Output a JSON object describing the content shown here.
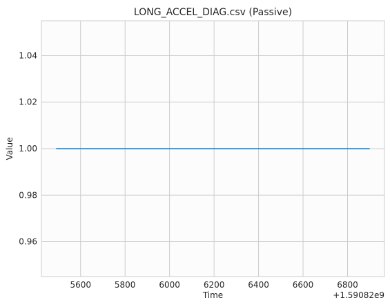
{
  "chart_data": {
    "type": "line",
    "title": "LONG_ACCEL_DIAG.csv (Passive)",
    "xlabel": "Time",
    "ylabel": "Value",
    "x_offset_label": "+1.59082e9",
    "xlim": [
      5424,
      6966
    ],
    "ylim": [
      0.945,
      1.055
    ],
    "x_ticks": [
      5600,
      5800,
      6000,
      6200,
      6400,
      6600,
      6800
    ],
    "x_tick_labels": [
      "5600",
      "5800",
      "6000",
      "6200",
      "6400",
      "6600",
      "6800"
    ],
    "y_ticks": [
      0.96,
      0.98,
      1.0,
      1.02,
      1.04
    ],
    "y_tick_labels": [
      "0.96",
      "0.98",
      "1.00",
      "1.02",
      "1.04"
    ],
    "grid": true,
    "series": [
      {
        "color": "#1f77b4",
        "x": [
          5490,
          6900
        ],
        "y": [
          1.0,
          1.0
        ]
      }
    ],
    "colors": {
      "background": "#ffffff",
      "plot_background": "#fcfcfc",
      "grid": "#cccccc",
      "text": "#262626"
    }
  }
}
